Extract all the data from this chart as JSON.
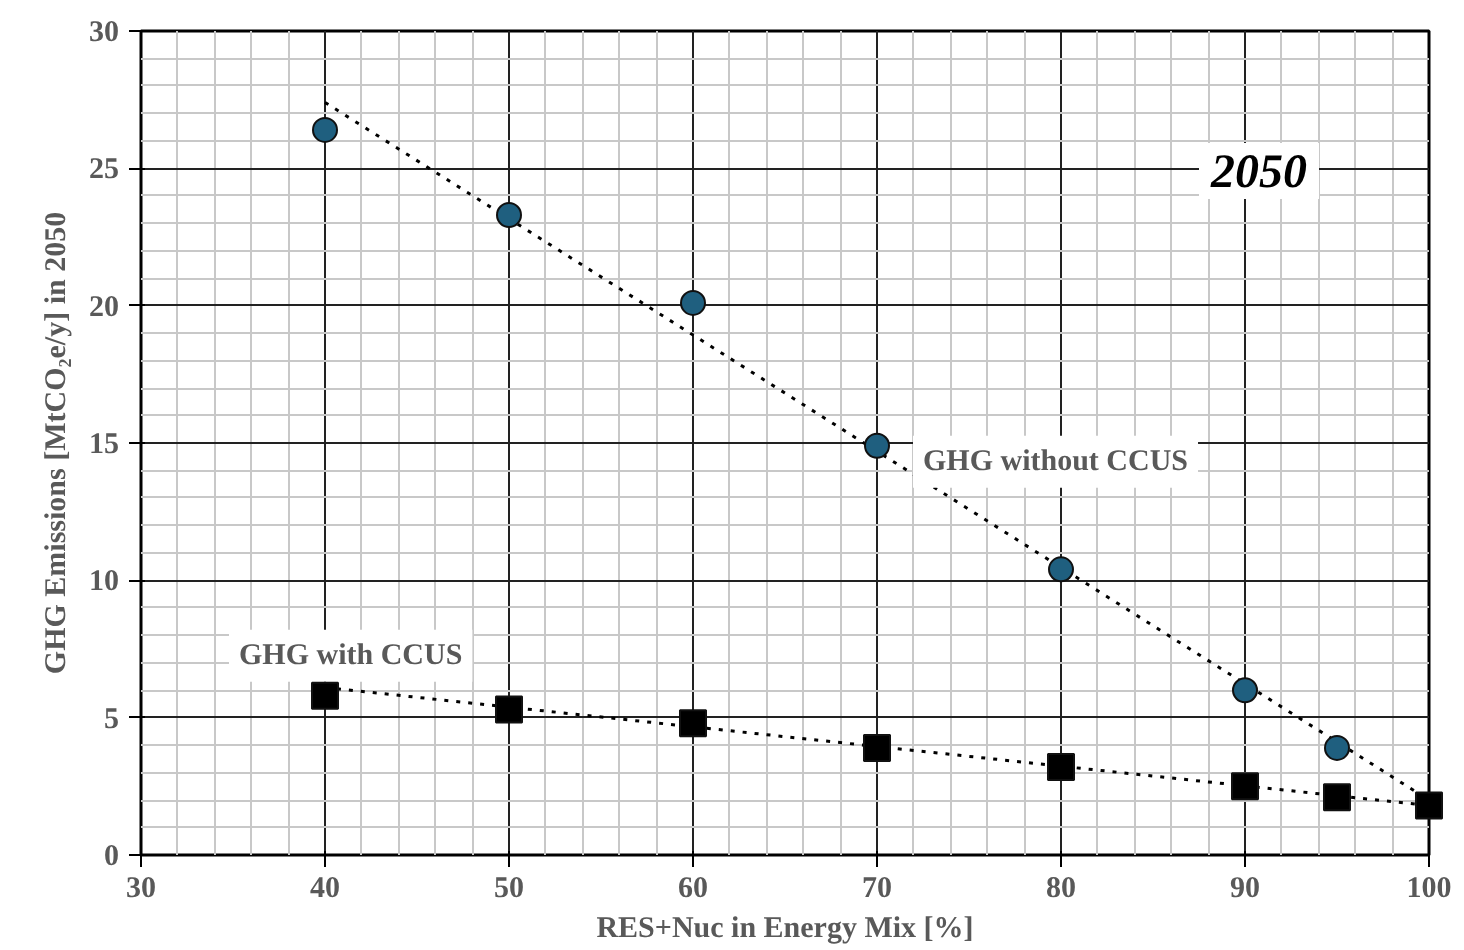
{
  "chart_data": {
    "type": "scatter",
    "xlabel": "RES+Nuc in Energy Mix [%]",
    "ylabel": "GHG Emissions [MtCO₂e/y] in 2050",
    "x": [
      40,
      50,
      60,
      70,
      80,
      90,
      95,
      100
    ],
    "series": [
      {
        "name": "GHG without CCUS",
        "color": "#1f5f7f",
        "marker": "circle",
        "x": [
          40,
          50,
          60,
          70,
          80,
          90,
          95
        ],
        "values": [
          26.4,
          23.3,
          20.1,
          14.9,
          10.4,
          6.0,
          3.9
        ]
      },
      {
        "name": "GHG with CCUS",
        "color": "#000000",
        "marker": "square",
        "values": [
          5.8,
          5.3,
          4.8,
          3.9,
          3.2,
          2.5,
          2.1,
          1.8
        ]
      },
      {
        "type": "line",
        "color": "#000000",
        "line_style": "dotted",
        "x": [
          40,
          100
        ],
        "values": [
          27.4,
          2.0
        ]
      },
      {
        "type": "line",
        "color": "#000000",
        "line_style": "dotted",
        "x": [
          40,
          100
        ],
        "values": [
          6.1,
          1.8
        ]
      }
    ],
    "annotations": [
      "2050"
    ],
    "xlim": [
      30,
      100
    ],
    "xticks": [
      30,
      40,
      50,
      60,
      70,
      80,
      90,
      100
    ],
    "ylim": [
      0,
      30
    ],
    "yticks": [
      0,
      5,
      10,
      15,
      20,
      25,
      30
    ],
    "grid": true
  }
}
